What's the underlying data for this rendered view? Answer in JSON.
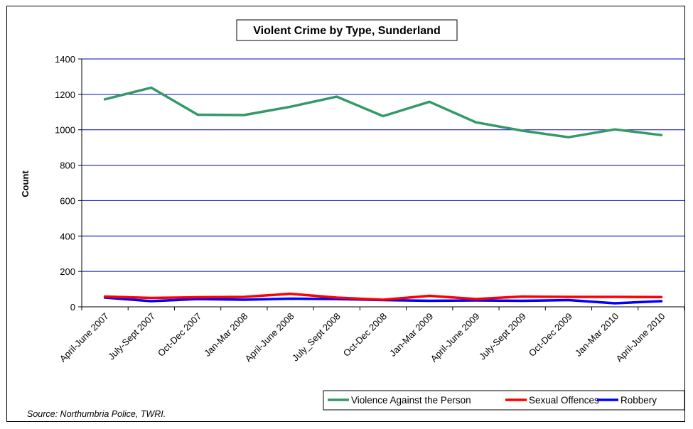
{
  "chart_data": {
    "type": "line",
    "title": "Violent Crime by Type, Sunderland",
    "xlabel": "",
    "ylabel": "Count",
    "ylim": [
      0,
      1400
    ],
    "yticks": [
      0,
      200,
      400,
      600,
      800,
      1000,
      1200,
      1400
    ],
    "grid": true,
    "legend_position": "bottom-right",
    "categories": [
      "April-June 2007",
      "July-Sept 2007",
      "Oct-Dec 2007",
      "Jan-Mar 2008",
      "April-June 2008",
      "July_Sept 2008",
      "Oct-Dec 2008",
      "Jan-Mar 2009",
      "April-June 2009",
      "July-Sept 2009",
      "Oct-Dec 2009",
      "Jan-Mar 2010",
      "April-June 2010"
    ],
    "series": [
      {
        "name": "Violence Against the Person",
        "color": "#339966",
        "values": [
          1172,
          1238,
          1085,
          1083,
          1130,
          1187,
          1077,
          1158,
          1042,
          995,
          958,
          1002,
          970
        ]
      },
      {
        "name": "Sexual Offences",
        "color": "#ff0000",
        "values": [
          58,
          50,
          54,
          56,
          74,
          52,
          40,
          62,
          44,
          58,
          56,
          56,
          55
        ]
      },
      {
        "name": "Robbery",
        "color": "#0000ff",
        "values": [
          52,
          32,
          44,
          40,
          46,
          44,
          38,
          34,
          36,
          34,
          38,
          20,
          32
        ]
      }
    ],
    "source": "Source: Northumbria Police, TWRI."
  }
}
